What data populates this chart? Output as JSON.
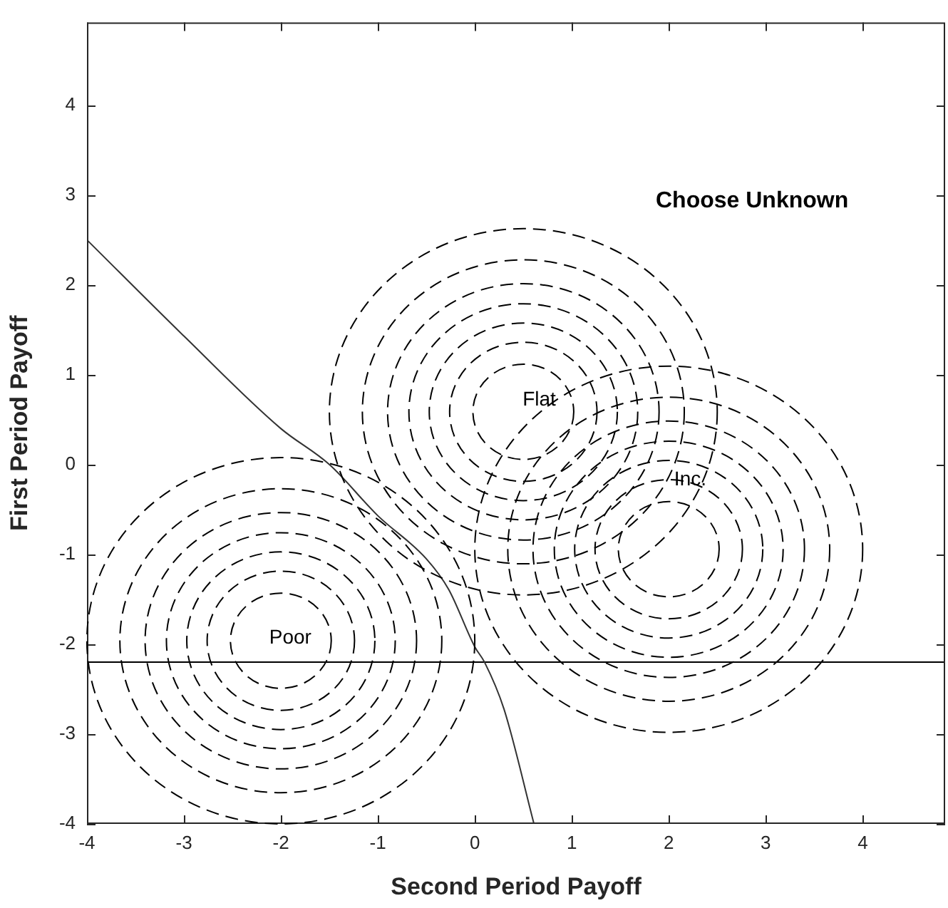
{
  "chart_data": {
    "type": "line",
    "xlabel": "Second Period Payoff",
    "ylabel": "First Period Payoff",
    "xlim": [
      -4,
      4.85
    ],
    "ylim": [
      -4,
      4.92
    ],
    "xticks": [
      -4,
      -3,
      -2,
      -1,
      0,
      1,
      2,
      3,
      4
    ],
    "yticks": [
      -4,
      -3,
      -2,
      -1,
      0,
      1,
      2,
      3,
      4
    ],
    "grid": false,
    "legend": false,
    "marker": "none",
    "ref_lines": [
      {
        "axis": "y",
        "value": -2.2,
        "color": "#000000"
      }
    ],
    "annotations": [
      "Choose Unknown",
      "Poor",
      "Flat",
      "Inc."
    ],
    "series": [
      {
        "color": "#333333",
        "line_style": "solid",
        "x": [
          -4,
          -3,
          -2,
          -1.5,
          -1,
          -0.5,
          -0.27,
          0,
          0.1,
          0.3,
          0.61
        ],
        "values": [
          2.5,
          1.43,
          0.4,
          0,
          -0.57,
          -1.05,
          -1.39,
          -2.03,
          -2.2,
          -2.72,
          -4
        ]
      }
    ]
  }
}
